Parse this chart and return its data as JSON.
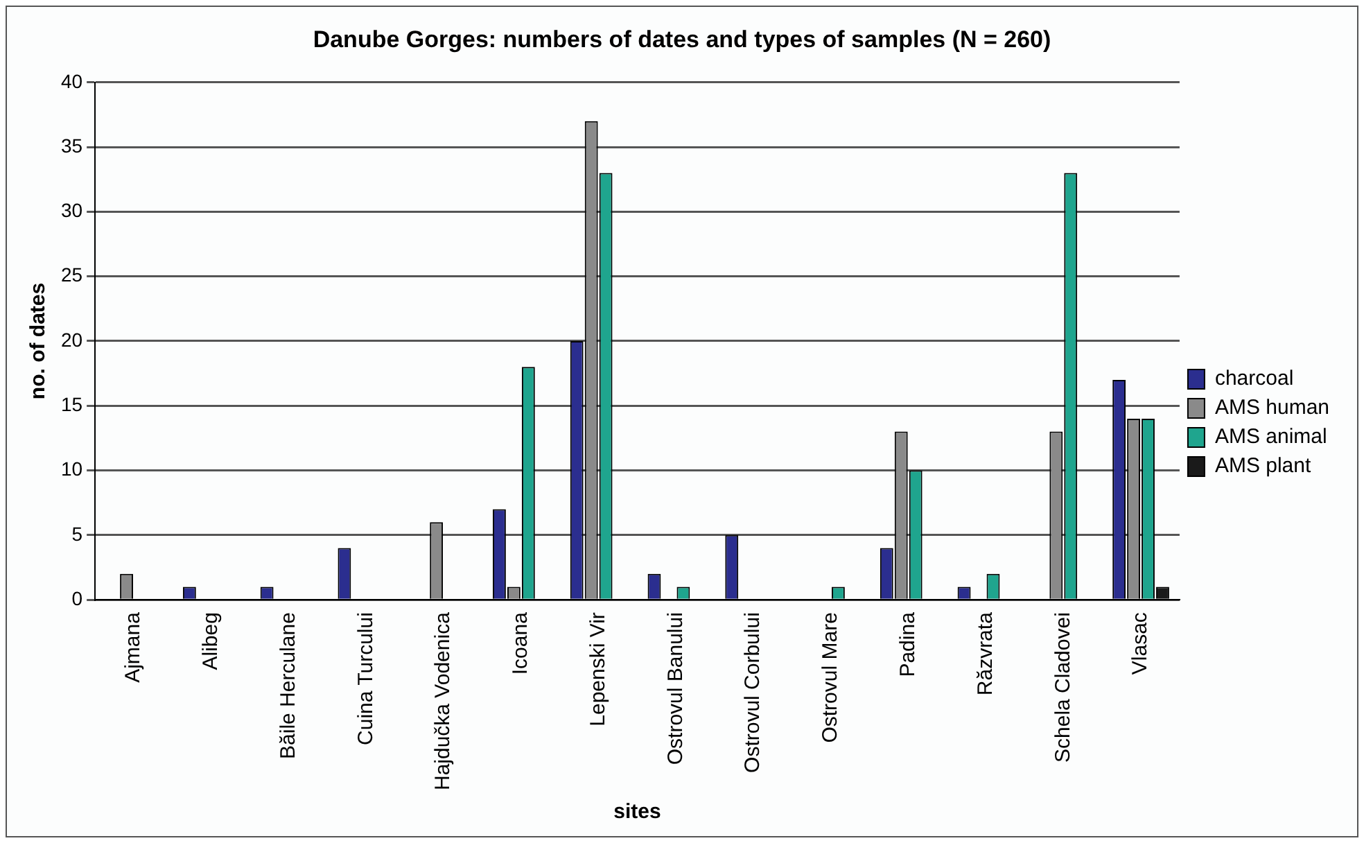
{
  "chart_data": {
    "type": "bar",
    "title": "Danube Gorges: numbers of dates and types of samples (N = 260)",
    "xlabel": "sites",
    "ylabel": "no. of dates",
    "categories": [
      "Ajmana",
      "Alibeg",
      "Băile Herculane",
      "Cuina Turcului",
      "Hajdučka Vodenica",
      "Icoana",
      "Lepenski Vir",
      "Ostrovul Banului",
      "Ostrovul Corbului",
      "Ostrovul Mare",
      "Padina",
      "Răzvrata",
      "Schela Cladovei",
      "Vlasac"
    ],
    "series": [
      {
        "name": "charcoal",
        "color": "#2b2e8f",
        "values": [
          0,
          1,
          1,
          4,
          0,
          7,
          20,
          2,
          5,
          0,
          4,
          1,
          0,
          17
        ]
      },
      {
        "name": "AMS human",
        "color": "#8a8a8a",
        "values": [
          2,
          0,
          0,
          0,
          6,
          1,
          37,
          0,
          0,
          0,
          13,
          0,
          13,
          14
        ]
      },
      {
        "name": "AMS animal",
        "color": "#1fa58e",
        "values": [
          0,
          0,
          0,
          0,
          0,
          18,
          33,
          1,
          0,
          1,
          10,
          2,
          33,
          14
        ]
      },
      {
        "name": "AMS plant",
        "color": "#1a1a1a",
        "values": [
          0,
          0,
          0,
          0,
          0,
          0,
          0,
          0,
          0,
          0,
          0,
          0,
          0,
          1
        ]
      }
    ],
    "ylim": [
      0,
      40
    ],
    "yticks": [
      0,
      5,
      10,
      15,
      20,
      25,
      30,
      35,
      40
    ],
    "grid": "y",
    "legend": "right"
  }
}
